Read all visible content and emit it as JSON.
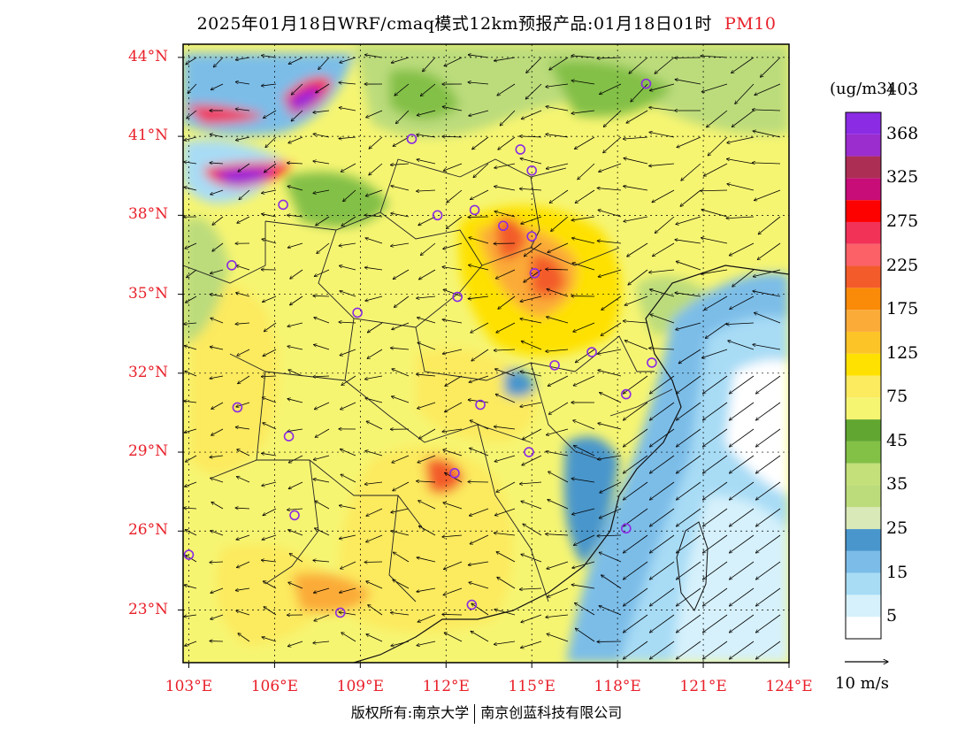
{
  "title": {
    "text": "2025年01月18日WRF/cmaq模式12km预报产品:01月18日01时",
    "pollutant": "PM10",
    "pollutant_color": "#e8202a"
  },
  "map": {
    "lon_range": [
      102.8,
      124.0
    ],
    "lat_range": [
      21.0,
      44.5
    ],
    "lat_labels": [
      "44°N",
      "41°N",
      "38°N",
      "35°N",
      "32°N",
      "29°N",
      "26°N",
      "23°N"
    ],
    "lat_values": [
      44,
      41,
      38,
      35,
      32,
      29,
      26,
      23
    ],
    "lon_labels": [
      "103°E",
      "106°E",
      "109°E",
      "112°E",
      "115°E",
      "118°E",
      "121°E",
      "124°E"
    ],
    "lon_values": [
      103,
      106,
      109,
      112,
      115,
      118,
      121,
      124
    ],
    "label_color": "#e8202a",
    "city_marker_color": "#8a2be2",
    "cities": [
      [
        119.0,
        43.0
      ],
      [
        110.8,
        40.9
      ],
      [
        114.6,
        40.5
      ],
      [
        115.0,
        39.7
      ],
      [
        106.3,
        38.4
      ],
      [
        111.7,
        38.0
      ],
      [
        113.0,
        38.2
      ],
      [
        114.0,
        37.6
      ],
      [
        115.0,
        37.2
      ],
      [
        115.1,
        35.8
      ],
      [
        104.5,
        36.1
      ],
      [
        112.4,
        34.9
      ],
      [
        108.9,
        34.3
      ],
      [
        117.1,
        32.8
      ],
      [
        115.8,
        32.3
      ],
      [
        119.2,
        32.4
      ],
      [
        104.7,
        30.7
      ],
      [
        113.2,
        30.8
      ],
      [
        118.3,
        31.2
      ],
      [
        106.5,
        29.6
      ],
      [
        112.3,
        28.2
      ],
      [
        114.9,
        29.0
      ],
      [
        106.7,
        26.6
      ],
      [
        118.3,
        26.1
      ],
      [
        103.0,
        25.1
      ],
      [
        108.3,
        22.9
      ],
      [
        112.9,
        23.2
      ]
    ]
  },
  "colorbar": {
    "unit": "(ug/m3)",
    "colors": [
      "#ffffff",
      "#d6f1fb",
      "#a8dcf5",
      "#7bbde8",
      "#4896cc",
      "#d9e9b7",
      "#bcdc7c",
      "#c3e07a",
      "#83c046",
      "#61a630",
      "#f6f572",
      "#fcea5f",
      "#fee100",
      "#fdc428",
      "#fbab38",
      "#f98b08",
      "#f35c2a",
      "#fc6168",
      "#f23257",
      "#fd0000",
      "#c80d78",
      "#ac2e55",
      "#9b2ccd",
      "#8b2be3"
    ],
    "tick_labels": [
      "5",
      "15",
      "25",
      "35",
      "45",
      "75",
      "125",
      "175",
      "225",
      "275",
      "325",
      "368",
      "403"
    ]
  },
  "wind": {
    "reference_label": "10 m/s"
  },
  "copyright": {
    "left": "版权所有:南京大学",
    "right": "南京创蓝科技有限公司"
  }
}
